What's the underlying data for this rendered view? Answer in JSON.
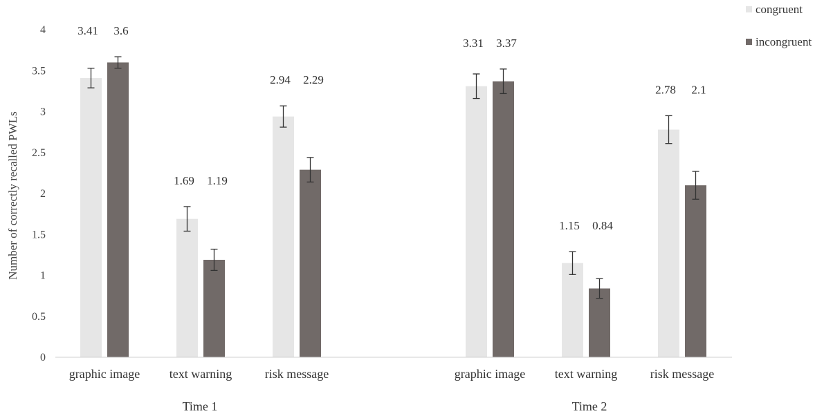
{
  "chart_data": {
    "type": "bar",
    "ylabel": "Number of correctly recalled PWLs",
    "ylim": [
      0,
      4
    ],
    "yticks": [
      0,
      0.5,
      1,
      1.5,
      2,
      2.5,
      3,
      3.5,
      4
    ],
    "ytick_labels": [
      "0",
      "0.5",
      "1",
      "1.5",
      "2",
      "2.5",
      "3",
      "3.5",
      "4"
    ],
    "groups": [
      {
        "label": "Time 1",
        "categories": [
          "graphic image",
          "text warning",
          "risk message"
        ]
      },
      {
        "label": "Time 2",
        "categories": [
          "graphic image",
          "text warning",
          "risk message"
        ]
      }
    ],
    "categories": [
      "graphic image",
      "text warning",
      "risk message",
      "graphic image",
      "text warning",
      "risk message"
    ],
    "series": [
      {
        "name": "congruent",
        "color": "#e6e6e6",
        "values": [
          3.41,
          1.69,
          2.94,
          3.31,
          1.15,
          2.78
        ],
        "labels": [
          "3.41",
          "1.69",
          "2.94",
          "3.31",
          "1.15",
          "2.78"
        ],
        "error": [
          0.12,
          0.15,
          0.13,
          0.15,
          0.14,
          0.17
        ]
      },
      {
        "name": "incongruent",
        "color": "#716a68",
        "values": [
          3.6,
          1.19,
          2.29,
          3.37,
          0.84,
          2.1
        ],
        "labels": [
          "3.6",
          "1.19",
          "2.29",
          "3.37",
          "0.84",
          "2.1"
        ],
        "error": [
          0.07,
          0.13,
          0.15,
          0.15,
          0.12,
          0.17
        ]
      }
    ],
    "legend_position": "top-right",
    "grid": false
  }
}
